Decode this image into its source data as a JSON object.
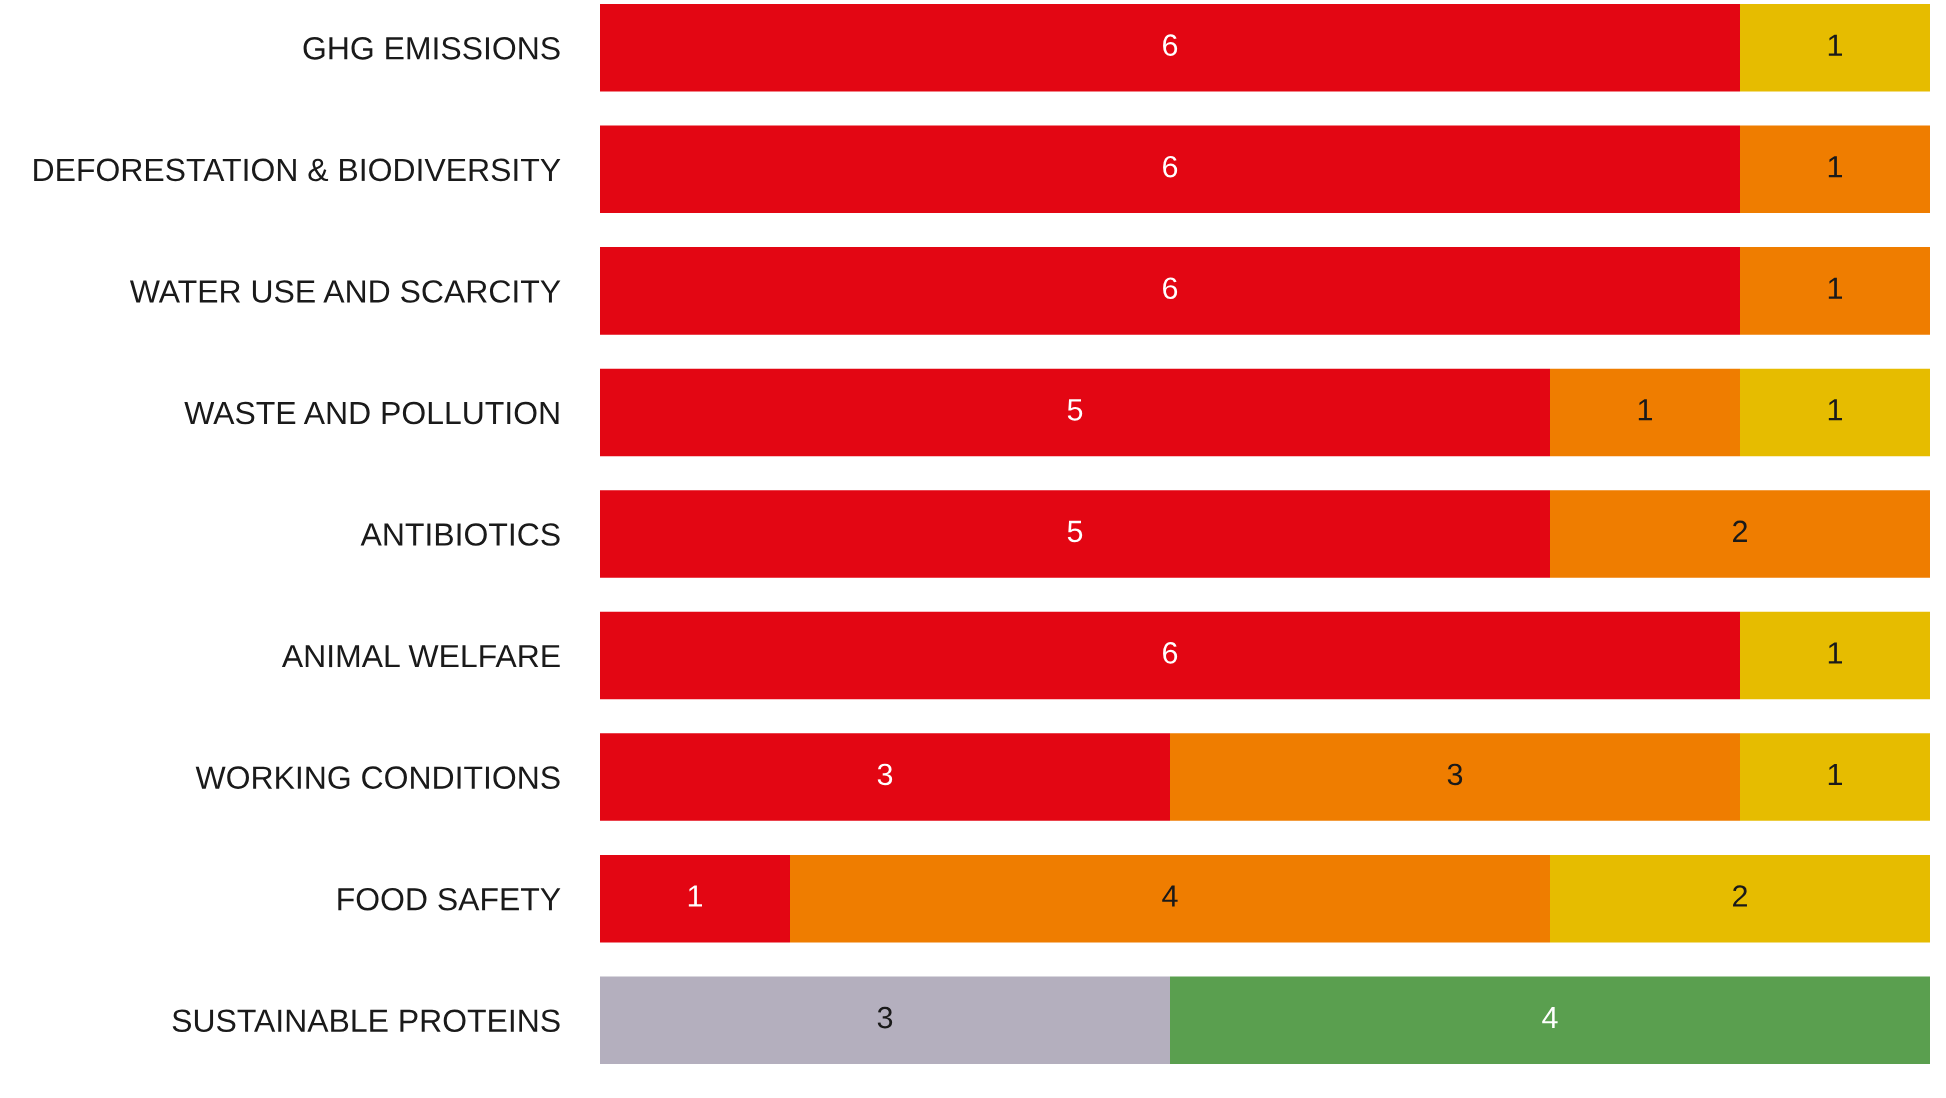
{
  "chart_data": {
    "type": "bar",
    "orientation": "horizontal",
    "stacked": true,
    "data_labels": true,
    "tick_labels": "y",
    "legend": false,
    "grid": false,
    "xlim": [
      0,
      7
    ],
    "categories": [
      "GHG EMISSIONS",
      "DEFORESTATION & BIODIVERSITY",
      "WATER USE AND SCARCITY",
      "WASTE AND POLLUTION",
      "ANTIBIOTICS",
      "ANIMAL WELFARE",
      "WORKING CONDITIONS",
      "FOOD SAFETY",
      "SUSTAINABLE PROTEINS"
    ],
    "series": [
      {
        "color": "#e30613",
        "values": [
          6,
          6,
          6,
          5,
          5,
          6,
          3,
          1,
          null
        ]
      },
      {
        "color": "#ef7d00",
        "values": [
          null,
          1,
          1,
          1,
          2,
          null,
          3,
          4,
          null
        ]
      },
      {
        "color": "#e6bc00",
        "values": [
          1,
          null,
          null,
          1,
          null,
          1,
          1,
          2,
          null
        ]
      },
      {
        "color": "#b4afbe",
        "values": [
          null,
          null,
          null,
          null,
          null,
          null,
          null,
          null,
          3
        ]
      },
      {
        "color": "#5a9f4f",
        "values": [
          null,
          null,
          null,
          null,
          null,
          null,
          null,
          null,
          4
        ]
      }
    ]
  }
}
